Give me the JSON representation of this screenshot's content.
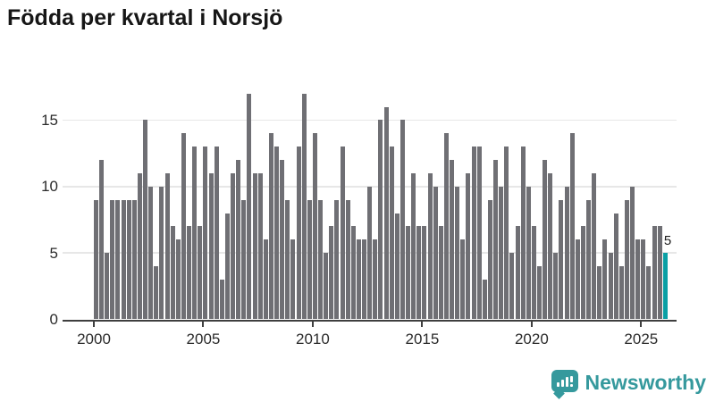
{
  "title": "Födda per kvartal i Norsjö",
  "colors": {
    "bar": "#6f6f74",
    "highlight": "#0ba0a5",
    "axis": "#3f3f3f",
    "gridline": "#e7e7e7",
    "tick_text": "#2b2b2b",
    "title_text": "#161616",
    "logo_teal": "#35999d",
    "background": "#ffffff"
  },
  "chart_data": {
    "type": "bar",
    "title": "Födda per kvartal i Norsjö",
    "xlabel": "",
    "ylabel": "",
    "ylim": [
      0,
      17.3
    ],
    "yticks": [
      0,
      5,
      10,
      15
    ],
    "xticks": [
      2000,
      2005,
      2010,
      2015,
      2020,
      2025
    ],
    "grid": "horizontal",
    "legend": "none",
    "series_unit": "quarters",
    "series": [
      {
        "year": 2000,
        "values": [
          9,
          12,
          5,
          9
        ]
      },
      {
        "year": 2001,
        "values": [
          9,
          9,
          9,
          9
        ]
      },
      {
        "year": 2002,
        "values": [
          11,
          15,
          10,
          4
        ]
      },
      {
        "year": 2003,
        "values": [
          10,
          11,
          7,
          6
        ]
      },
      {
        "year": 2004,
        "values": [
          14,
          7,
          13,
          7
        ]
      },
      {
        "year": 2005,
        "values": [
          13,
          11,
          13,
          3
        ]
      },
      {
        "year": 2006,
        "values": [
          8,
          11,
          12,
          9
        ]
      },
      {
        "year": 2007,
        "values": [
          17,
          11,
          11,
          6
        ]
      },
      {
        "year": 2008,
        "values": [
          14,
          13,
          12,
          9
        ]
      },
      {
        "year": 2009,
        "values": [
          6,
          13,
          17,
          9
        ]
      },
      {
        "year": 2010,
        "values": [
          14,
          9,
          5,
          7
        ]
      },
      {
        "year": 2011,
        "values": [
          9,
          13,
          9,
          7
        ]
      },
      {
        "year": 2012,
        "values": [
          6,
          6,
          10,
          6
        ]
      },
      {
        "year": 2013,
        "values": [
          15,
          16,
          13,
          8
        ]
      },
      {
        "year": 2014,
        "values": [
          15,
          7,
          11,
          7
        ]
      },
      {
        "year": 2015,
        "values": [
          7,
          11,
          10,
          7
        ]
      },
      {
        "year": 2016,
        "values": [
          14,
          12,
          10,
          6
        ]
      },
      {
        "year": 2017,
        "values": [
          11,
          13,
          13,
          3
        ]
      },
      {
        "year": 2018,
        "values": [
          9,
          12,
          10,
          13
        ]
      },
      {
        "year": 2019,
        "values": [
          5,
          7,
          13,
          10
        ]
      },
      {
        "year": 2020,
        "values": [
          7,
          4,
          12,
          11
        ]
      },
      {
        "year": 2021,
        "values": [
          5,
          9,
          10,
          14
        ]
      },
      {
        "year": 2022,
        "values": [
          6,
          7,
          9,
          11
        ]
      },
      {
        "year": 2023,
        "values": [
          4,
          6,
          5,
          8
        ]
      },
      {
        "year": 2024,
        "values": [
          4,
          9,
          10,
          6
        ]
      },
      {
        "year": 2025,
        "values": [
          6,
          4,
          7,
          7
        ]
      },
      {
        "year": 2026,
        "values": [
          5
        ]
      }
    ],
    "highlight_last": {
      "quarter": "2026 Q1",
      "value": 5,
      "label": "5"
    }
  },
  "annotation": {
    "last_value_label": "5"
  },
  "logo": {
    "text": "Newsworthy",
    "icon": "bar-chart-speech-bubble-icon"
  }
}
